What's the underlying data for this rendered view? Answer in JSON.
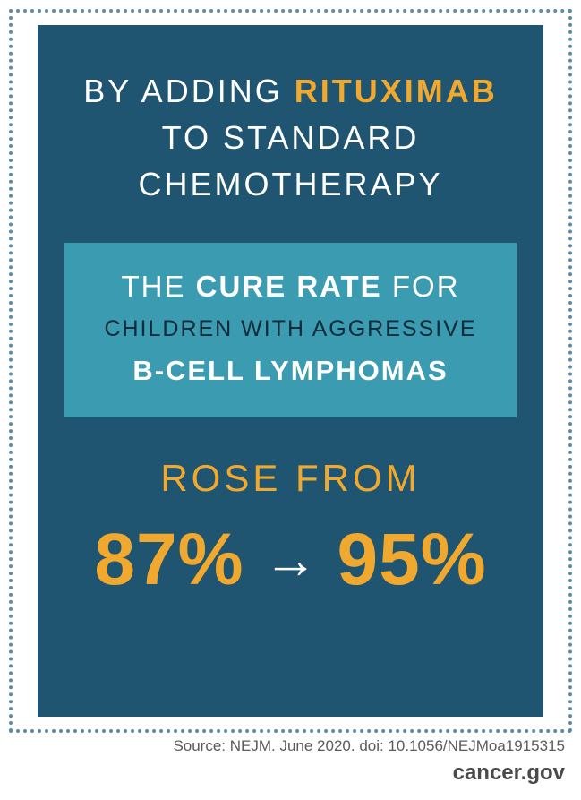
{
  "colors": {
    "background": "#ffffff",
    "dotted_border": "#5a8ba8",
    "panel_bg": "#1f5570",
    "teal_bg": "#3b9bb0",
    "accent_gold": "#f0a92e",
    "text_white": "#ffffff",
    "text_dark_teal": "#0f2a3a",
    "footer_text": "#5a5a5a"
  },
  "typography": {
    "headline_fontsize": 36,
    "headline_letterspacing": 3,
    "teal_line1_fontsize": 33,
    "teal_line2_fontsize": 25,
    "teal_line3_fontsize": 31,
    "rose_from_fontsize": 42,
    "pct_fontsize": 82,
    "source_fontsize": 17,
    "site_fontsize": 24
  },
  "headline": {
    "pre": "BY ADDING ",
    "drug": "RITUXIMAB",
    "post": " TO STANDARD CHEMOTHERAPY"
  },
  "teal": {
    "line1_pre": "THE ",
    "line1_bold": "CURE RATE",
    "line1_post": " FOR",
    "line2": "CHILDREN WITH AGGRESSIVE",
    "line3": "B-CELL LYMPHOMAS"
  },
  "rose_from": "ROSE FROM",
  "stats": {
    "from_pct": "87%",
    "to_pct": "95%",
    "arrow": "→"
  },
  "footer": {
    "source": "Source: NEJM. June 2020. doi: 10.1056/NEJMoa1915315",
    "site": "cancer.gov"
  }
}
